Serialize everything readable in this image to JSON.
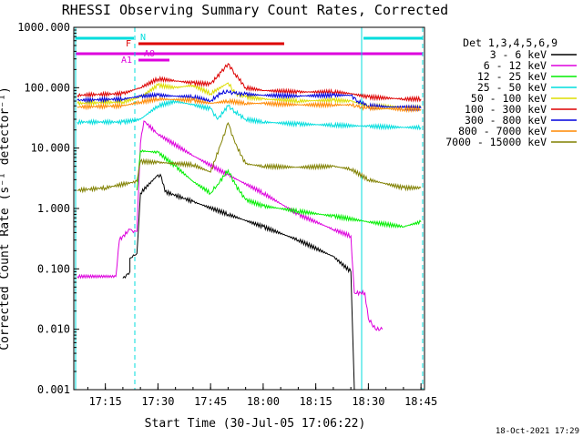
{
  "chart_data": {
    "type": "line",
    "title": "RHESSI Observing Summary Count Rates, Corrected",
    "ylabel": "Corrected Count Rate (s⁻¹ detector⁻¹)",
    "xlabel": "Start Time (30-Jul-05 17:06:22)",
    "yscale": "log",
    "ylim": [
      0.001,
      1000
    ],
    "xlim": [
      "17:06",
      "18:46"
    ],
    "y_tick_labels": [
      "1000.000",
      "100.000",
      "10.000",
      "1.000",
      "0.100",
      "0.010",
      "0.001"
    ],
    "x_tick_labels": [
      "17:15",
      "17:30",
      "17:45",
      "18:00",
      "18:15",
      "18:30",
      "18:45"
    ],
    "date_stamp": "18-Oct-2021 17:29",
    "legend_title": "Det 1,3,4,5,6,9",
    "legend_placement": "right",
    "flag_labels": [
      "N",
      "F",
      "AO",
      "A1"
    ],
    "series": [
      {
        "name": "3 - 6 keV",
        "color": "#000000",
        "x": [
          "17:20",
          "17:21",
          "17:22",
          "17:22",
          "17:23",
          "17:24",
          "17:25",
          "17:30",
          "17:31",
          "17:32",
          "17:40",
          "17:50",
          "18:00",
          "18:10",
          "18:20",
          "18:25",
          "18:26"
        ],
        "y": [
          0.07,
          0.08,
          0.09,
          0.15,
          0.17,
          0.18,
          1.8,
          3.6,
          3.3,
          1.9,
          1.3,
          0.8,
          0.5,
          0.3,
          0.16,
          0.09,
          0.001
        ]
      },
      {
        "name": "6 - 12 keV",
        "color": "#dd00dd",
        "x": [
          "17:07",
          "17:18",
          "17:19",
          "17:22",
          "17:23",
          "17:24",
          "17:25",
          "17:26",
          "17:30",
          "17:40",
          "17:50",
          "18:00",
          "18:10",
          "18:20",
          "18:25",
          "18:26",
          "18:29",
          "18:30",
          "18:32",
          "18:34"
        ],
        "y": [
          0.075,
          0.075,
          0.3,
          0.45,
          0.4,
          0.42,
          12,
          28,
          17,
          7.5,
          3.6,
          1.8,
          0.8,
          0.45,
          0.35,
          0.04,
          0.04,
          0.015,
          0.01,
          0.01
        ]
      },
      {
        "name": "12 - 25 keV",
        "color": "#00ee00",
        "x": [
          "17:24",
          "17:25",
          "17:30",
          "17:35",
          "17:40",
          "17:45",
          "17:47",
          "17:50",
          "17:52",
          "17:55",
          "18:00",
          "18:10",
          "18:20",
          "18:30",
          "18:40",
          "18:45"
        ],
        "y": [
          2.0,
          9.0,
          8.5,
          5.0,
          2.8,
          1.8,
          2.5,
          4.3,
          2.5,
          1.4,
          1.1,
          0.9,
          0.75,
          0.6,
          0.5,
          0.6
        ]
      },
      {
        "name": "25 - 50 keV",
        "color": "#00dddd",
        "x": [
          "17:07",
          "17:20",
          "17:25",
          "17:30",
          "17:35",
          "17:40",
          "17:45",
          "17:47",
          "17:50",
          "17:52",
          "17:55",
          "18:00",
          "18:10",
          "18:20",
          "18:30",
          "18:40",
          "18:45"
        ],
        "y": [
          27,
          27,
          30,
          50,
          60,
          52,
          45,
          30,
          50,
          40,
          30,
          27,
          25,
          24,
          23,
          22,
          22
        ]
      },
      {
        "name": "50 - 100 keV",
        "color": "#dddd00",
        "x": [
          "17:07",
          "17:20",
          "17:25",
          "17:30",
          "17:35",
          "17:40",
          "17:45",
          "17:50",
          "17:52",
          "17:55",
          "18:00",
          "18:10",
          "18:20",
          "18:25",
          "18:30",
          "18:40",
          "18:45"
        ],
        "y": [
          55,
          58,
          70,
          110,
          100,
          110,
          80,
          120,
          80,
          70,
          65,
          60,
          62,
          60,
          50,
          48,
          47
        ]
      },
      {
        "name": "100 - 300 keV",
        "color": "#dd0000",
        "x": [
          "17:07",
          "17:20",
          "17:25",
          "17:30",
          "17:35",
          "17:40",
          "17:45",
          "17:48",
          "17:50",
          "17:52",
          "17:55",
          "18:00",
          "18:10",
          "18:20",
          "18:25",
          "18:30",
          "18:40",
          "18:45"
        ],
        "y": [
          75,
          80,
          100,
          140,
          130,
          120,
          115,
          180,
          250,
          170,
          100,
          90,
          85,
          85,
          80,
          70,
          65,
          65
        ]
      },
      {
        "name": "300 - 800 keV",
        "color": "#0000dd",
        "x": [
          "17:07",
          "17:20",
          "17:25",
          "17:30",
          "17:40",
          "17:45",
          "17:48",
          "17:50",
          "17:52",
          "17:55",
          "18:00",
          "18:10",
          "18:20",
          "18:25",
          "18:27",
          "18:30",
          "18:40",
          "18:45"
        ],
        "y": [
          62,
          65,
          72,
          75,
          70,
          60,
          82,
          85,
          80,
          78,
          75,
          73,
          75,
          75,
          60,
          50,
          47,
          46
        ]
      },
      {
        "name": "800 - 7000 keV",
        "color": "#ff8800",
        "x": [
          "17:07",
          "17:20",
          "17:25",
          "17:30",
          "17:40",
          "17:45",
          "17:50",
          "17:55",
          "18:00",
          "18:10",
          "18:20",
          "18:25",
          "18:27",
          "18:30",
          "18:40",
          "18:45"
        ],
        "y": [
          48,
          50,
          58,
          65,
          62,
          55,
          60,
          55,
          55,
          52,
          52,
          52,
          48,
          46,
          44,
          44
        ]
      },
      {
        "name": "7000 - 15000 keV",
        "color": "#808000",
        "x": [
          "17:07",
          "17:15",
          "17:24",
          "17:25",
          "17:30",
          "17:40",
          "17:45",
          "17:48",
          "17:50",
          "17:52",
          "17:55",
          "18:00",
          "18:10",
          "18:20",
          "18:25",
          "18:30",
          "18:40",
          "18:45"
        ],
        "y": [
          2.0,
          2.2,
          2.8,
          6.0,
          5.8,
          5.3,
          4.0,
          12,
          26,
          12,
          5.5,
          5.0,
          4.8,
          5.0,
          4.5,
          3.0,
          2.2,
          2.2
        ]
      }
    ]
  }
}
